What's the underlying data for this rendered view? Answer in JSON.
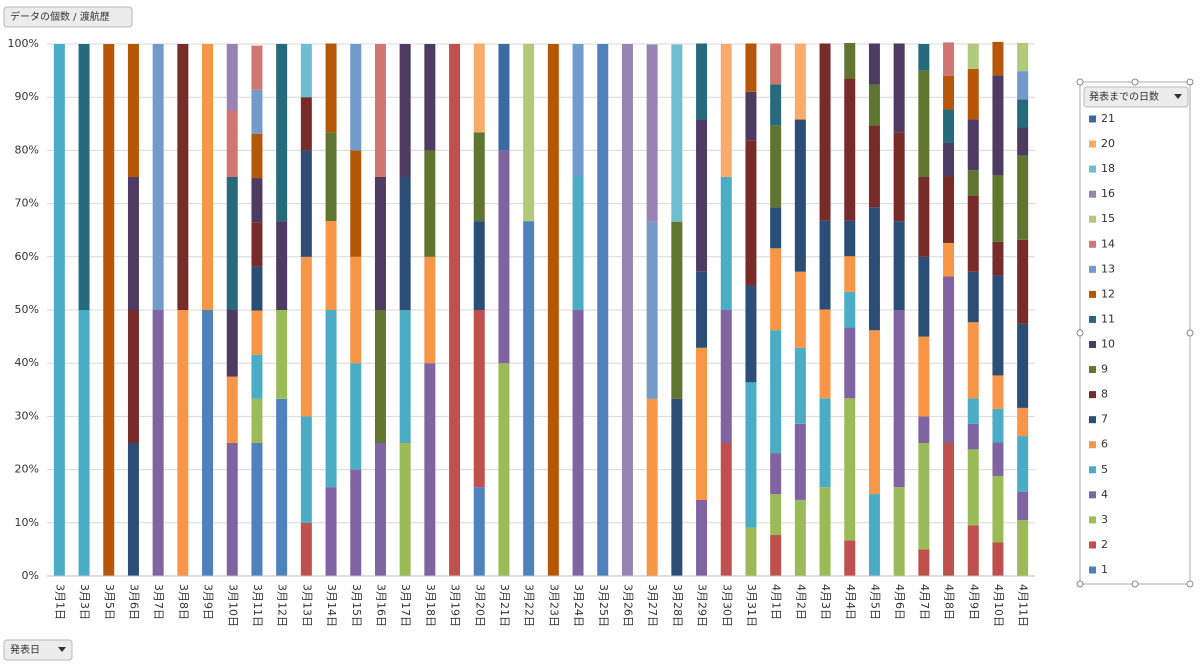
{
  "chart_data": {
    "type": "stacked_bar_100",
    "data_field_button": "データの個数 / 渡航歴",
    "axis_field_button": "発表日",
    "legend_title": "発表までの日数",
    "categories": [
      "3月1日",
      "3月3日",
      "3月5日",
      "3月6日",
      "3月7日",
      "3月8日",
      "3月9日",
      "3月10日",
      "3月11日",
      "3月12日",
      "3月13日",
      "3月14日",
      "3月15日",
      "3月16日",
      "3月17日",
      "3月18日",
      "3月19日",
      "3月20日",
      "3月21日",
      "3月22日",
      "3月23日",
      "3月24日",
      "3月25日",
      "3月26日",
      "3月27日",
      "3月28日",
      "3月29日",
      "3月30日",
      "3月31日",
      "4月1日",
      "4月2日",
      "4月3日",
      "4月4日",
      "4月5日",
      "4月6日",
      "4月7日",
      "4月8日",
      "4月9日",
      "4月10日",
      "4月11日"
    ],
    "ylim": [
      0,
      100
    ],
    "yticks": [
      {
        "value": 0,
        "label": "0%"
      },
      {
        "value": 10,
        "label": "10%"
      },
      {
        "value": 20,
        "label": "20%"
      },
      {
        "value": 30,
        "label": "30%"
      },
      {
        "value": 40,
        "label": "40%"
      },
      {
        "value": 50,
        "label": "50%"
      },
      {
        "value": 60,
        "label": "60%"
      },
      {
        "value": 70,
        "label": "70%"
      },
      {
        "value": 80,
        "label": "80%"
      },
      {
        "value": 90,
        "label": "90%"
      },
      {
        "value": 100,
        "label": "100%"
      }
    ],
    "grid": true,
    "legend_position": "right",
    "series": [
      {
        "name": "1",
        "color": "#4f81bd",
        "values": [
          null,
          null,
          null,
          null,
          null,
          null,
          50,
          null,
          25,
          33.3,
          null,
          null,
          null,
          null,
          null,
          null,
          null,
          16.7,
          null,
          66.7,
          null,
          null,
          100,
          null,
          null,
          null,
          null,
          null,
          null,
          null,
          null,
          null,
          null,
          null,
          null,
          null,
          null,
          null,
          null,
          null
        ]
      },
      {
        "name": "2",
        "color": "#c0504d",
        "values": [
          null,
          null,
          null,
          null,
          null,
          null,
          null,
          null,
          null,
          null,
          10,
          null,
          null,
          null,
          null,
          null,
          100,
          33.3,
          null,
          null,
          null,
          null,
          null,
          null,
          null,
          null,
          null,
          25,
          null,
          7.7,
          null,
          null,
          6.7,
          null,
          null,
          5,
          25,
          9.5,
          6.3,
          null
        ]
      },
      {
        "name": "3",
        "color": "#9bbb59",
        "values": [
          null,
          null,
          null,
          null,
          null,
          null,
          null,
          null,
          8.3,
          16.7,
          null,
          null,
          null,
          null,
          25,
          null,
          null,
          null,
          40,
          null,
          null,
          null,
          null,
          null,
          null,
          null,
          null,
          null,
          9.1,
          7.7,
          14.3,
          16.7,
          26.7,
          null,
          16.7,
          20,
          null,
          14.3,
          12.5,
          10.5
        ]
      },
      {
        "name": "4",
        "color": "#8064a2",
        "values": [
          null,
          null,
          null,
          null,
          50,
          null,
          null,
          25,
          null,
          null,
          null,
          16.7,
          20,
          25,
          null,
          40,
          null,
          null,
          40,
          null,
          null,
          50,
          null,
          null,
          null,
          null,
          14.3,
          25,
          null,
          7.7,
          14.3,
          null,
          13.3,
          null,
          33.3,
          5,
          31.3,
          4.8,
          6.3,
          5.3
        ]
      },
      {
        "name": "5",
        "color": "#4bacc6",
        "values": [
          100,
          50,
          null,
          null,
          null,
          null,
          null,
          null,
          8.3,
          null,
          20,
          33.3,
          20,
          null,
          25,
          null,
          null,
          null,
          null,
          null,
          null,
          25,
          null,
          null,
          null,
          null,
          null,
          25,
          27.3,
          23.1,
          14.3,
          16.7,
          6.7,
          15.4,
          null,
          null,
          null,
          4.8,
          6.3,
          10.5
        ]
      },
      {
        "name": "6",
        "color": "#f79646",
        "values": [
          null,
          null,
          null,
          null,
          null,
          50,
          50,
          12.5,
          8.3,
          null,
          30,
          16.7,
          20,
          null,
          null,
          20,
          null,
          null,
          null,
          null,
          null,
          null,
          null,
          null,
          33.3,
          null,
          28.6,
          null,
          null,
          15.4,
          14.3,
          16.7,
          6.7,
          30.8,
          null,
          15,
          6.3,
          14.3,
          6.3,
          5.3
        ]
      },
      {
        "name": "7",
        "color": "#2c4d75",
        "values": [
          null,
          null,
          null,
          25,
          null,
          null,
          null,
          null,
          8.3,
          null,
          20,
          null,
          null,
          null,
          25,
          null,
          null,
          16.7,
          null,
          null,
          null,
          null,
          null,
          null,
          null,
          33.3,
          14.3,
          null,
          18.2,
          7.7,
          28.6,
          16.7,
          6.7,
          23.1,
          16.7,
          15,
          null,
          9.5,
          18.8,
          15.8
        ]
      },
      {
        "name": "8",
        "color": "#772c2a",
        "values": [
          null,
          null,
          null,
          25,
          null,
          50,
          null,
          null,
          8.3,
          null,
          10,
          null,
          null,
          null,
          null,
          null,
          null,
          null,
          null,
          null,
          null,
          null,
          null,
          null,
          null,
          null,
          null,
          null,
          27.3,
          null,
          null,
          33.3,
          26.7,
          15.4,
          16.7,
          15,
          12.5,
          14.3,
          6.3,
          15.8
        ]
      },
      {
        "name": "9",
        "color": "#5f7530",
        "values": [
          null,
          null,
          null,
          null,
          null,
          null,
          null,
          null,
          null,
          null,
          null,
          16.7,
          null,
          25,
          null,
          20,
          null,
          16.7,
          null,
          null,
          null,
          null,
          null,
          null,
          null,
          33.3,
          null,
          null,
          null,
          15.4,
          null,
          null,
          6.7,
          7.7,
          null,
          20,
          null,
          4.8,
          12.5,
          15.8
        ]
      },
      {
        "name": "10",
        "color": "#4d3b62",
        "values": [
          null,
          null,
          null,
          25,
          null,
          null,
          null,
          12.5,
          8.3,
          16.7,
          null,
          null,
          null,
          25,
          25,
          20,
          null,
          null,
          null,
          null,
          null,
          null,
          null,
          null,
          null,
          null,
          28.6,
          null,
          9.1,
          null,
          null,
          null,
          null,
          7.7,
          16.7,
          null,
          6.3,
          9.5,
          18.8,
          5.3
        ]
      },
      {
        "name": "11",
        "color": "#276a7c",
        "values": [
          null,
          50,
          null,
          null,
          null,
          null,
          null,
          25,
          null,
          33.3,
          null,
          null,
          null,
          null,
          null,
          null,
          null,
          null,
          null,
          null,
          null,
          null,
          null,
          null,
          null,
          null,
          14.3,
          null,
          null,
          7.7,
          null,
          null,
          null,
          null,
          null,
          5,
          6.3,
          null,
          null,
          5.3
        ]
      },
      {
        "name": "12",
        "color": "#b65708",
        "values": [
          null,
          null,
          100,
          25,
          null,
          null,
          null,
          null,
          8.3,
          null,
          null,
          16.7,
          20,
          null,
          null,
          null,
          null,
          null,
          null,
          null,
          100,
          null,
          null,
          null,
          null,
          null,
          null,
          null,
          9.1,
          null,
          null,
          null,
          null,
          null,
          null,
          null,
          6.3,
          9.5,
          6.3,
          null
        ]
      },
      {
        "name": "13",
        "color": "#729aca",
        "values": [
          null,
          null,
          null,
          null,
          50,
          null,
          null,
          null,
          8.3,
          null,
          null,
          null,
          20,
          null,
          null,
          null,
          null,
          null,
          null,
          null,
          null,
          25,
          null,
          null,
          33.3,
          null,
          null,
          null,
          null,
          null,
          null,
          null,
          null,
          null,
          null,
          null,
          null,
          null,
          null,
          5.3
        ]
      },
      {
        "name": "14",
        "color": "#d07774",
        "values": [
          null,
          null,
          null,
          null,
          null,
          null,
          null,
          12.5,
          8.3,
          null,
          null,
          null,
          null,
          25,
          null,
          null,
          null,
          null,
          null,
          null,
          null,
          null,
          null,
          null,
          null,
          null,
          null,
          null,
          null,
          7.7,
          null,
          null,
          null,
          null,
          null,
          null,
          6.3,
          null,
          null,
          null
        ]
      },
      {
        "name": "15",
        "color": "#afca7b",
        "values": [
          null,
          null,
          null,
          null,
          null,
          null,
          null,
          null,
          null,
          null,
          null,
          null,
          null,
          null,
          null,
          null,
          null,
          null,
          null,
          33.3,
          null,
          null,
          null,
          null,
          null,
          null,
          null,
          null,
          null,
          null,
          null,
          null,
          null,
          null,
          null,
          null,
          null,
          4.8,
          null,
          5.3
        ]
      },
      {
        "name": "16",
        "color": "#9983b5",
        "values": [
          null,
          null,
          null,
          null,
          null,
          null,
          null,
          12.5,
          null,
          null,
          null,
          null,
          null,
          null,
          null,
          null,
          null,
          null,
          null,
          null,
          null,
          null,
          null,
          100,
          33.3,
          null,
          null,
          null,
          null,
          null,
          null,
          null,
          null,
          null,
          null,
          null,
          null,
          null,
          null,
          null
        ]
      },
      {
        "name": "18",
        "color": "#6fbdd1",
        "values": [
          null,
          null,
          null,
          null,
          null,
          null,
          null,
          null,
          null,
          null,
          10,
          null,
          null,
          null,
          null,
          null,
          null,
          null,
          null,
          null,
          null,
          null,
          null,
          null,
          null,
          33.3,
          null,
          null,
          null,
          null,
          null,
          null,
          null,
          null,
          null,
          null,
          null,
          null,
          null,
          null
        ]
      },
      {
        "name": "20",
        "color": "#f9ab6b",
        "values": [
          null,
          null,
          null,
          null,
          null,
          null,
          null,
          null,
          null,
          null,
          null,
          null,
          null,
          null,
          null,
          null,
          null,
          16.7,
          null,
          null,
          null,
          null,
          null,
          null,
          null,
          null,
          null,
          25,
          null,
          null,
          14.3,
          null,
          null,
          null,
          null,
          null,
          null,
          null,
          null,
          null
        ]
      },
      {
        "name": "21",
        "color": "#3b6aa3",
        "values": [
          null,
          null,
          null,
          null,
          null,
          null,
          null,
          null,
          null,
          null,
          null,
          null,
          null,
          null,
          null,
          null,
          null,
          null,
          20,
          null,
          null,
          null,
          null,
          null,
          null,
          null,
          null,
          null,
          null,
          null,
          null,
          null,
          null,
          null,
          null,
          null,
          null,
          null,
          null,
          null
        ]
      }
    ]
  }
}
